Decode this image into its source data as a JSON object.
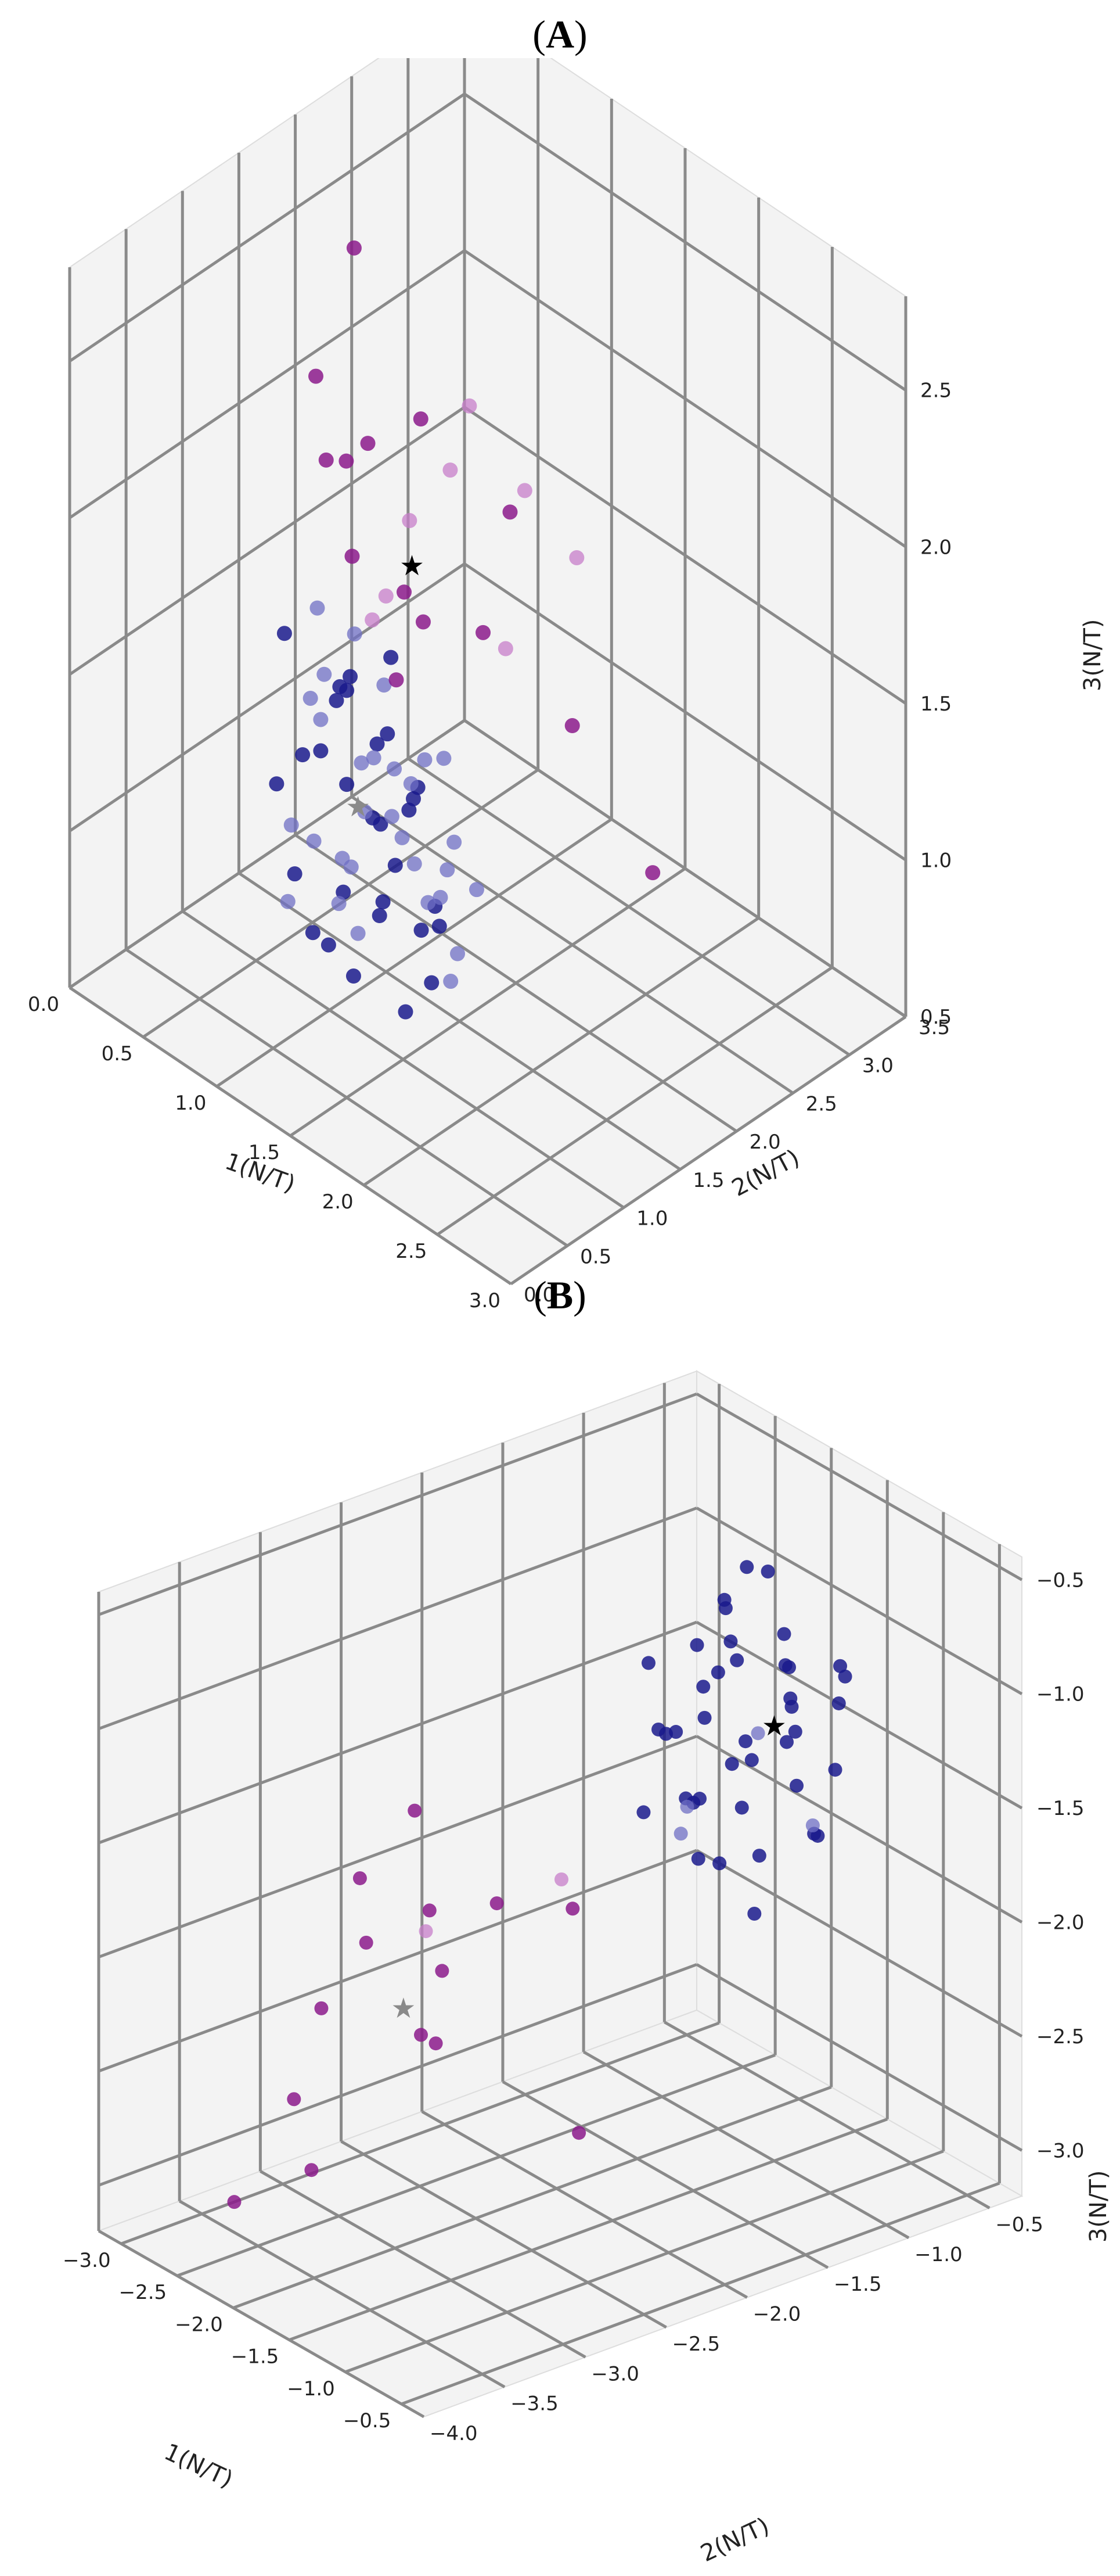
{
  "panels": [
    {
      "label_open": "(",
      "label_letter": "A",
      "label_close": ")"
    },
    {
      "label_open": "(",
      "label_letter": "B",
      "label_close": ")"
    }
  ],
  "colors": {
    "navy": "#1a1a8c",
    "blue_light": "#6f6fc4",
    "purple": "#8b1a8b",
    "purple_light": "#c77ec9",
    "star_black": "#000000",
    "star_grey": "#8a8a8a"
  },
  "chart_data": [
    {
      "type": "scatter",
      "projection": "3d",
      "grid": true,
      "xlabel": "1(N/T)",
      "ylabel": "2(N/T)",
      "zlabel": "3(N/T)",
      "x_ticks": [
        "0.0",
        "0.5",
        "1.0",
        "1.5",
        "2.0",
        "2.5",
        "3.0"
      ],
      "y_ticks": [
        "0.0",
        "0.5",
        "1.0",
        "1.5",
        "2.0",
        "2.5",
        "3.0",
        "3.5"
      ],
      "z_ticks": [
        "0.5",
        "1.0",
        "1.5",
        "2.0",
        "2.5"
      ],
      "xlim": [
        0,
        3
      ],
      "ylim": [
        0,
        3.5
      ],
      "zlim": [
        0.5,
        2.8
      ],
      "series": [
        {
          "color": "navy",
          "points": [
            [
              1.5,
              0.5,
              1.8
            ],
            [
              1.4,
              0.4,
              1.6
            ],
            [
              1.6,
              0.6,
              1.4
            ],
            [
              1.8,
              0.4,
              1.2
            ],
            [
              1.7,
              0.3,
              1.0
            ],
            [
              1.9,
              0.5,
              0.9
            ],
            [
              1.3,
              0.7,
              1.7
            ],
            [
              1.2,
              0.5,
              1.5
            ],
            [
              1.5,
              0.8,
              1.3
            ],
            [
              1.6,
              0.4,
              1.9
            ],
            [
              1.4,
              0.6,
              1.1
            ],
            [
              2.0,
              0.6,
              1.0
            ],
            [
              1.8,
              0.7,
              1.5
            ],
            [
              1.9,
              0.3,
              1.3
            ],
            [
              1.1,
              0.4,
              1.4
            ],
            [
              1.3,
              0.3,
              1.2
            ],
            [
              1.7,
              0.6,
              1.7
            ],
            [
              1.5,
              0.2,
              1.1
            ],
            [
              1.6,
              0.8,
              1.2
            ],
            [
              2.1,
              0.5,
              1.3
            ],
            [
              1.2,
              0.8,
              1.6
            ],
            [
              1.8,
              0.5,
              2.0
            ],
            [
              1.4,
              0.9,
              1.5
            ],
            [
              1.9,
              0.8,
              1.1
            ],
            [
              1.0,
              0.6,
              1.8
            ],
            [
              1.6,
              1.0,
              1.4
            ],
            [
              2.0,
              0.4,
              1.6
            ],
            [
              1.3,
              0.6,
              0.9
            ],
            [
              1.7,
              0.9,
              1.0
            ],
            [
              1.5,
              0.5,
              1.5
            ]
          ]
        },
        {
          "color": "blue_light",
          "points": [
            [
              1.4,
              0.7,
              1.9
            ],
            [
              1.6,
              0.5,
              1.6
            ],
            [
              1.8,
              0.6,
              1.4
            ],
            [
              1.5,
              0.9,
              1.3
            ],
            [
              1.2,
              0.4,
              1.3
            ],
            [
              1.7,
              0.2,
              1.4
            ],
            [
              1.9,
              0.7,
              1.2
            ],
            [
              1.3,
              0.8,
              1.1
            ],
            [
              2.0,
              0.8,
              1.4
            ],
            [
              1.1,
              0.7,
              1.6
            ],
            [
              1.6,
              0.7,
              1.8
            ],
            [
              1.8,
              1.0,
              1.2
            ],
            [
              1.4,
              0.4,
              1.7
            ],
            [
              1.5,
              1.1,
              1.1
            ],
            [
              2.1,
              0.7,
              1.1
            ],
            [
              1.7,
              0.4,
              1.5
            ],
            [
              1.2,
              0.6,
              1.2
            ],
            [
              1.9,
              0.4,
              1.7
            ],
            [
              1.6,
              0.3,
              1.2
            ],
            [
              1.3,
              1.0,
              1.4
            ],
            [
              1.8,
              0.8,
              1.6
            ],
            [
              1.5,
              0.3,
              1.9
            ],
            [
              2.0,
              1.0,
              1.2
            ],
            [
              1.4,
              1.2,
              1.3
            ],
            [
              1.7,
              1.1,
              1.5
            ],
            [
              1.1,
              0.5,
              1.0
            ],
            [
              1.9,
              0.9,
              0.9
            ],
            [
              1.6,
              1.2,
              1.0
            ],
            [
              1.3,
              0.5,
              2.0
            ],
            [
              1.5,
              0.6,
              1.0
            ]
          ]
        },
        {
          "color": "purple",
          "points": [
            [
              0.6,
              1.4,
              2.3
            ],
            [
              0.4,
              2.0,
              2.5
            ],
            [
              0.8,
              1.6,
              2.1
            ],
            [
              1.0,
              1.2,
              1.9
            ],
            [
              1.2,
              1.4,
              1.8
            ],
            [
              0.7,
              2.2,
              2.0
            ],
            [
              1.5,
              2.5,
              1.2
            ],
            [
              1.1,
              1.7,
              1.6
            ],
            [
              0.9,
              1.1,
              2.2
            ],
            [
              1.3,
              1.2,
              1.6
            ],
            [
              0.5,
              1.8,
              1.9
            ],
            [
              1.2,
              2.1,
              1.5
            ],
            [
              2.2,
              2.3,
              1.0
            ],
            [
              1.0,
              2.6,
              1.7
            ]
          ]
        },
        {
          "color": "purple_light",
          "points": [
            [
              0.8,
              2.5,
              2.0
            ],
            [
              0.9,
              2.2,
              1.9
            ],
            [
              1.1,
              2.6,
              1.8
            ],
            [
              0.7,
              2.1,
              1.7
            ],
            [
              1.2,
              2.3,
              1.4
            ],
            [
              1.3,
              2.8,
              1.6
            ],
            [
              0.6,
              1.9,
              1.4
            ],
            [
              1.0,
              1.5,
              1.7
            ]
          ]
        }
      ],
      "markers": [
        {
          "label": "star",
          "color": "star_black",
          "point": [
            1.1,
            1.6,
            1.8
          ]
        },
        {
          "label": "star",
          "color": "star_grey",
          "point": [
            1.5,
            0.6,
            1.4
          ]
        }
      ]
    },
    {
      "type": "scatter",
      "projection": "3d",
      "grid": true,
      "xlabel": "1(N/T)",
      "ylabel": "2(N/T)",
      "zlabel": "3(N/T)",
      "x_ticks": [
        "−3.0",
        "−2.5",
        "−2.0",
        "−1.5",
        "−1.0",
        "−0.5"
      ],
      "y_ticks": [
        "−4.0",
        "−3.5",
        "−3.0",
        "−2.5",
        "−2.0",
        "−1.5",
        "−1.0",
        "−0.5"
      ],
      "z_ticks": [
        "−3.0",
        "−2.5",
        "−2.0",
        "−1.5",
        "−1.0",
        "−0.5"
      ],
      "xlim": [
        -3.2,
        -0.3
      ],
      "ylim": [
        -4.0,
        -0.3
      ],
      "zlim": [
        -3.2,
        -0.4
      ],
      "series": [
        {
          "color": "navy",
          "points": [
            [
              -1.6,
              -1.2,
              -0.9
            ],
            [
              -1.4,
              -1.0,
              -1.0
            ],
            [
              -1.7,
              -1.3,
              -1.1
            ],
            [
              -1.5,
              -0.9,
              -1.2
            ],
            [
              -1.8,
              -1.1,
              -0.8
            ],
            [
              -1.3,
              -1.4,
              -1.3
            ],
            [
              -1.6,
              -0.8,
              -1.4
            ],
            [
              -1.9,
              -1.2,
              -1.0
            ],
            [
              -1.2,
              -1.1,
              -1.1
            ],
            [
              -1.5,
              -1.5,
              -1.5
            ],
            [
              -1.7,
              -0.9,
              -0.7
            ],
            [
              -1.4,
              -1.3,
              -0.9
            ],
            [
              -1.8,
              -1.4,
              -1.3
            ],
            [
              -1.1,
              -0.9,
              -1.4
            ],
            [
              -1.6,
              -1.6,
              -1.2
            ],
            [
              -2.0,
              -1.0,
              -1.2
            ],
            [
              -1.3,
              -0.7,
              -1.1
            ],
            [
              -1.5,
              -1.2,
              -1.6
            ],
            [
              -1.9,
              -1.5,
              -1.0
            ],
            [
              -1.2,
              -1.3,
              -1.7
            ],
            [
              -1.7,
              -1.0,
              -1.5
            ],
            [
              -1.4,
              -0.8,
              -1.8
            ],
            [
              -1.8,
              -0.7,
              -1.2
            ],
            [
              -1.1,
              -1.2,
              -1.2
            ],
            [
              -1.6,
              -1.4,
              -1.8
            ],
            [
              -2.1,
              -1.3,
              -1.4
            ],
            [
              -1.3,
              -1.0,
              -1.5
            ],
            [
              -1.5,
              -0.6,
              -1.3
            ],
            [
              -1.0,
              -1.1,
              -1.6
            ],
            [
              -1.9,
              -0.9,
              -1.5
            ],
            [
              -1.4,
              -1.5,
              -1.1
            ],
            [
              -1.7,
              -1.2,
              -1.9
            ],
            [
              -1.2,
              -0.8,
              -1.0
            ],
            [
              -1.6,
              -1.1,
              -0.6
            ],
            [
              -1.8,
              -1.6,
              -1.6
            ],
            [
              -1.1,
              -1.4,
              -1.9
            ],
            [
              -1.5,
              -1.3,
              -0.7
            ],
            [
              -2.0,
              -1.2,
              -1.7
            ],
            [
              -1.3,
              -1.6,
              -1.4
            ],
            [
              -1.7,
              -0.8,
              -1.0
            ]
          ]
        },
        {
          "color": "blue_light",
          "points": [
            [
              -1.5,
              -1.1,
              -1.3
            ],
            [
              -1.7,
              -1.4,
              -1.6
            ],
            [
              -1.3,
              -0.9,
              -1.7
            ],
            [
              -1.9,
              -1.3,
              -1.8
            ]
          ]
        },
        {
          "color": "purple",
          "points": [
            [
              -2.4,
              -2.6,
              -1.5
            ],
            [
              -2.1,
              -2.3,
              -1.9
            ],
            [
              -2.6,
              -2.8,
              -1.8
            ],
            [
              -2.3,
              -2.5,
              -2.2
            ],
            [
              -2.8,
              -2.9,
              -2.4
            ],
            [
              -2.5,
              -2.4,
              -2.6
            ],
            [
              -2.2,
              -2.7,
              -2.4
            ],
            [
              -2.7,
              -2.3,
              -2.1
            ],
            [
              -2.9,
              -3.0,
              -2.8
            ],
            [
              -2.0,
              -1.9,
              -2.0
            ],
            [
              -3.0,
              -3.3,
              -3.2
            ],
            [
              -2.6,
              -3.1,
              -3.0
            ],
            [
              -1.8,
              -2.0,
              -2.9
            ],
            [
              -2.4,
              -2.9,
              -2.0
            ]
          ]
        },
        {
          "color": "purple_light",
          "points": [
            [
              -2.3,
              -2.6,
              -2.0
            ],
            [
              -2.1,
              -1.9,
              -1.9
            ]
          ]
        }
      ],
      "markers": [
        {
          "label": "star",
          "color": "star_black",
          "point": [
            -1.5,
            -1.0,
            -1.3
          ]
        },
        {
          "label": "star",
          "color": "star_grey",
          "point": [
            -2.5,
            -2.6,
            -2.4
          ]
        }
      ]
    }
  ]
}
